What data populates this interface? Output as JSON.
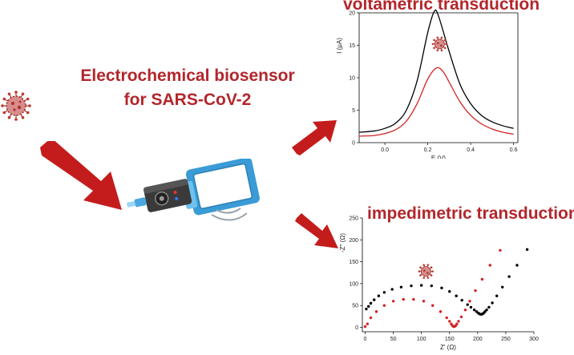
{
  "headline": {
    "line1": "Electrochemical biosensor",
    "line2": "for SARS-CoV-2"
  },
  "colors": {
    "accent_red": "#b3262b",
    "arrow_red": "#c41c1c",
    "curve_black": "#000000",
    "curve_red": "#d42121",
    "device_blue": "#3a9bd6",
    "device_dark": "#333333"
  },
  "icons": [
    "virus-icon",
    "arrow-icon",
    "biosensor-device-icon",
    "wireless-signal-icon"
  ],
  "chart_data": [
    {
      "type": "line",
      "title": "voltametric transduction",
      "xlabel": "E (V)",
      "ylabel": "I (µA)",
      "xlim": [
        -0.12,
        0.62
      ],
      "ylim": [
        0,
        20
      ],
      "xticks": [
        "0.0",
        "0.2",
        "0.4",
        "0.6"
      ],
      "yticks": [
        "0",
        "5",
        "10",
        "15",
        "20"
      ],
      "series": [
        {
          "color": "#000000",
          "x": [
            -0.12,
            -0.05,
            0.0,
            0.05,
            0.1,
            0.15,
            0.2,
            0.23,
            0.25,
            0.3,
            0.35,
            0.4,
            0.45,
            0.5,
            0.55,
            0.6
          ],
          "y": [
            1.6,
            1.8,
            2.2,
            3.0,
            5.0,
            9.5,
            17.0,
            20.2,
            19.5,
            14.0,
            9.0,
            6.0,
            4.2,
            3.2,
            2.6,
            2.2
          ]
        },
        {
          "color": "#d42121",
          "x": [
            -0.12,
            -0.05,
            0.0,
            0.05,
            0.1,
            0.15,
            0.2,
            0.24,
            0.27,
            0.3,
            0.35,
            0.4,
            0.45,
            0.5,
            0.55,
            0.6
          ],
          "y": [
            1.0,
            1.1,
            1.4,
            2.0,
            3.3,
            6.0,
            9.8,
            11.5,
            11.0,
            9.3,
            6.3,
            4.2,
            2.9,
            2.1,
            1.6,
            1.3
          ]
        }
      ]
    },
    {
      "type": "scatter",
      "title": "impedimetric transduction",
      "xlabel": "Z' (Ω)",
      "ylabel": "-Z'' (Ω)",
      "xlim": [
        -5,
        300
      ],
      "ylim": [
        -10,
        250
      ],
      "xticks": [
        "0",
        "50",
        "100",
        "150",
        "200",
        "250",
        "300"
      ],
      "yticks": [
        "0",
        "50",
        "100",
        "150",
        "200",
        "250"
      ],
      "series": [
        {
          "color": "#000000",
          "x": [
            2,
            6,
            10,
            16,
            24,
            34,
            48,
            64,
            82,
            100,
            118,
            136,
            150,
            162,
            172,
            182,
            188,
            194,
            198,
            201,
            203,
            205,
            207,
            209,
            211,
            213,
            216,
            220,
            226,
            234,
            244,
            256,
            270,
            288
          ],
          "y": [
            42,
            48,
            55,
            63,
            72,
            80,
            87,
            92,
            95,
            96,
            95,
            90,
            82,
            72,
            62,
            52,
            46,
            40,
            36,
            33,
            31,
            30,
            30,
            31,
            33,
            36,
            40,
            46,
            56,
            72,
            92,
            116,
            142,
            178
          ],
          "tail_only": false
        },
        {
          "color": "#d42121",
          "x": [
            0,
            4,
            10,
            20,
            34,
            50,
            68,
            86,
            104,
            120,
            134,
            145,
            150,
            153,
            155,
            157,
            159,
            161,
            163,
            166,
            171,
            178,
            186,
            196,
            208,
            222,
            240
          ],
          "y": [
            2,
            8,
            22,
            36,
            50,
            60,
            64,
            64,
            60,
            50,
            36,
            22,
            14,
            8,
            4,
            2,
            2,
            4,
            8,
            14,
            24,
            40,
            60,
            84,
            110,
            142,
            176
          ]
        }
      ]
    }
  ]
}
